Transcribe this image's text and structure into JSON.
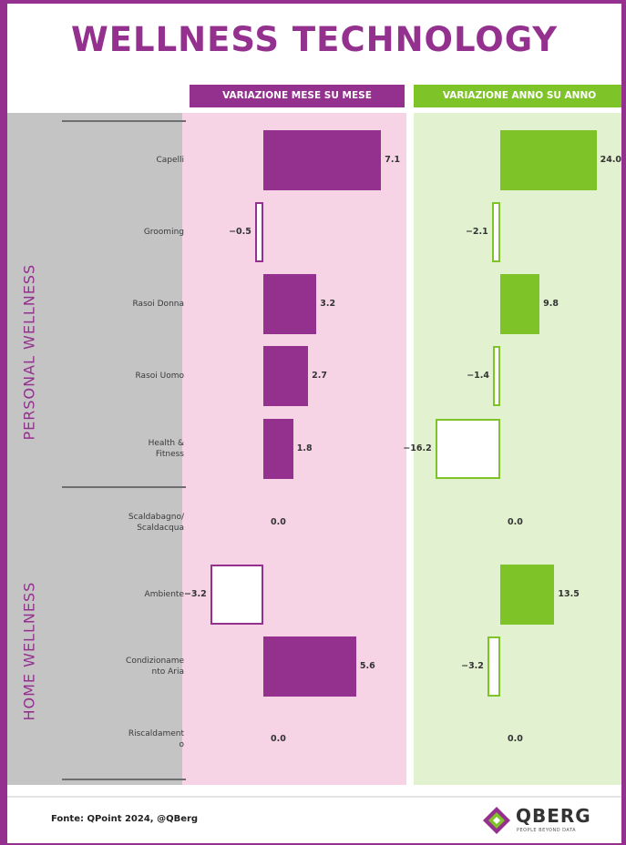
{
  "title": "WELLNESS TECHNOLOGY",
  "source": "Fonte: QPoint 2024, @QBerg",
  "logo": {
    "name": "QBERG",
    "tagline": "PEOPLE BEYOND DATA"
  },
  "colors": {
    "frame": "#94308e",
    "mom_bar": "#94308e",
    "mom_panel": "#f6d4e6",
    "yoy_bar": "#7ec327",
    "yoy_panel": "#e2f1cf",
    "label_panel": "#c4c4c4"
  },
  "chart_data": {
    "type": "bar",
    "orientation": "horizontal",
    "groups": [
      {
        "name": "PERSONAL WELLNESS",
        "categories": [
          "Capelli",
          "Grooming",
          "Rasoi Donna",
          "Rasoi Uomo",
          "Health & Fitness"
        ]
      },
      {
        "name": "HOME WELLNESS",
        "categories": [
          "Scaldabagno/ Scaldacqua",
          "Ambiente",
          "Condizionamento Aria",
          "Riscaldamento"
        ]
      }
    ],
    "categories": [
      "Capelli",
      "Grooming",
      "Rasoi Donna",
      "Rasoi Uomo",
      "Health & Fitness",
      "Scaldabagno/ Scaldacqua",
      "Ambiente",
      "Condizionamento Aria",
      "Riscaldamento"
    ],
    "category_labels": [
      "Capelli",
      "Grooming",
      "Rasoi Donna",
      "Rasoi Uomo",
      "Health &\nFitness",
      "Scaldabagno/\nScaldacqua",
      "Ambiente",
      "Condizioname\nnto Aria",
      "Riscaldament\no"
    ],
    "series": [
      {
        "name": "VARIAZIONE MESE SU MESE",
        "color": "#94308e",
        "values": [
          7.1,
          -0.5,
          3.2,
          2.7,
          1.8,
          0.0,
          -3.2,
          5.6,
          0.0
        ],
        "labels": [
          "7.1",
          "−0.5",
          "3.2",
          "2.7",
          "1.8",
          "0.0",
          "−3.2",
          "5.6",
          "0.0"
        ]
      },
      {
        "name": "VARIAZIONE ANNO SU ANNO",
        "color": "#7ec327",
        "values": [
          24.0,
          -2.1,
          9.8,
          -1.4,
          -16.2,
          0.0,
          13.5,
          -3.2,
          0.0
        ],
        "labels": [
          "24.0",
          "−2.1",
          "9.8",
          "−1.4",
          "−16.2",
          "0.0",
          "13.5",
          "−3.2",
          "0.0"
        ]
      }
    ],
    "negative_style": "white fill with colored outline"
  }
}
